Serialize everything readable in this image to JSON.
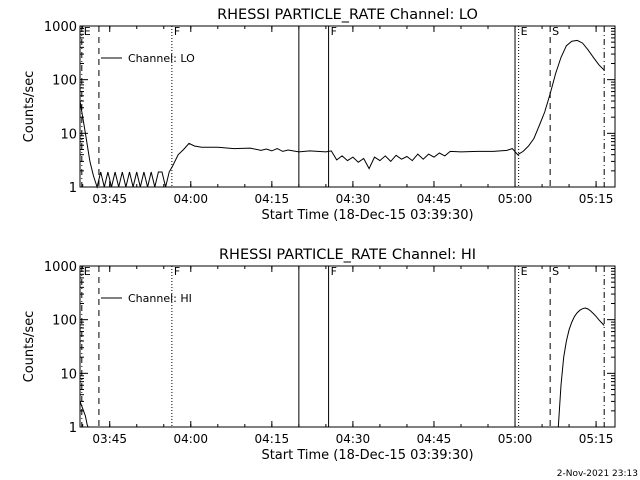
{
  "footer": {
    "timestamp": "2-Nov-2021 23:13"
  },
  "chart_data": [
    {
      "type": "line",
      "title": "RHESSI PARTICLE_RATE Channel: LO",
      "xlabel": "Start Time (18-Dec-15 03:39:30)",
      "ylabel": "Counts/sec",
      "y_scale": "log",
      "xlim": [
        "03:39:30",
        "05:18:30"
      ],
      "ylim": [
        1,
        1000
      ],
      "x_ticks": [
        "03:45",
        "04:00",
        "04:15",
        "04:30",
        "04:45",
        "05:00",
        "05:15"
      ],
      "y_ticks": [
        "1",
        "10",
        "100",
        "1000"
      ],
      "legend": {
        "placement": "top-left",
        "entries": [
          "Channel: LO"
        ]
      },
      "markers": [
        {
          "time": "03:39:50",
          "style": "dash-dot",
          "label": "E"
        },
        {
          "time": "03:43:00",
          "style": "dashed",
          "label": ""
        },
        {
          "time": "03:56:30",
          "style": "dotted",
          "label": "F"
        },
        {
          "time": "04:20:00",
          "style": "solid",
          "label": ""
        },
        {
          "time": "04:25:30",
          "style": "solid",
          "label": "F"
        },
        {
          "time": "05:00:00",
          "style": "solid",
          "label": ""
        },
        {
          "time": "05:00:40",
          "style": "dotted",
          "label": "E"
        },
        {
          "time": "05:06:30",
          "style": "dashed",
          "label": "S"
        },
        {
          "time": "05:16:30",
          "style": "dash-dot",
          "label": ""
        }
      ],
      "series": [
        {
          "name": "Channel: LO",
          "x": [
            "03:39:30",
            "03:40:30",
            "03:41:20",
            "03:42:00",
            "03:42:40",
            "03:43:20",
            "03:44:00",
            "03:44:40",
            "03:45:20",
            "03:46:00",
            "03:46:40",
            "03:47:20",
            "03:48:00",
            "03:48:40",
            "03:49:20",
            "03:50:00",
            "03:50:40",
            "03:51:20",
            "03:52:00",
            "03:52:40",
            "03:53:20",
            "03:54:00",
            "03:54:40",
            "03:55:20",
            "03:56:00",
            "03:56:40",
            "03:57:40",
            "03:58:40",
            "03:59:40",
            "04:00:40",
            "04:02:00",
            "04:05:00",
            "04:08:00",
            "04:11:00",
            "04:13:00",
            "04:14:00",
            "04:15:00",
            "04:16:00",
            "04:17:00",
            "04:18:00",
            "04:20:00",
            "04:22:00",
            "04:25:00",
            "04:26:00",
            "04:27:00",
            "04:28:00",
            "04:29:00",
            "04:30:00",
            "04:31:00",
            "04:32:00",
            "04:33:00",
            "04:34:00",
            "04:35:00",
            "04:36:00",
            "04:37:00",
            "04:38:00",
            "04:39:00",
            "04:40:00",
            "04:41:00",
            "04:42:00",
            "04:43:00",
            "04:44:00",
            "04:45:00",
            "04:46:00",
            "04:47:00",
            "04:48:00",
            "04:50:00",
            "04:53:00",
            "04:56:00",
            "04:58:30",
            "04:59:30",
            "05:00:30",
            "05:01:30",
            "05:02:30",
            "05:03:30",
            "05:04:30",
            "05:05:30",
            "05:06:30",
            "05:07:30",
            "05:08:30",
            "05:09:30",
            "05:10:30",
            "05:11:30",
            "05:12:30",
            "05:13:30",
            "05:14:30",
            "05:15:30",
            "05:16:30"
          ],
          "y": [
            40,
            10,
            3,
            1.6,
            1,
            1.9,
            1,
            1.9,
            1,
            1.9,
            1,
            1.9,
            1,
            1.9,
            1,
            1.9,
            1,
            1.9,
            1,
            1.9,
            1,
            1.9,
            1.9,
            1,
            1.9,
            2.5,
            4,
            5,
            6.5,
            5.8,
            5.5,
            5.5,
            5.2,
            5.3,
            4.8,
            5.1,
            4.7,
            5.2,
            4.6,
            4.9,
            4.5,
            4.7,
            4.5,
            4.7,
            3.2,
            3.8,
            3.1,
            3.6,
            2.9,
            3.4,
            2.2,
            3.6,
            3.1,
            3.8,
            3,
            3.9,
            3.3,
            3.7,
            3.1,
            4.1,
            3.3,
            4.1,
            3.6,
            4.3,
            3.8,
            4.6,
            4.5,
            4.6,
            4.6,
            4.8,
            5.2,
            4,
            4.6,
            5.8,
            8,
            14,
            25,
            55,
            130,
            260,
            430,
            520,
            540,
            480,
            360,
            260,
            190,
            150
          ]
        }
      ]
    },
    {
      "type": "line",
      "title": "RHESSI PARTICLE_RATE Channel: HI",
      "xlabel": "Start Time (18-Dec-15 03:39:30)",
      "ylabel": "Counts/sec",
      "y_scale": "log",
      "xlim": [
        "03:39:30",
        "05:18:30"
      ],
      "ylim": [
        1,
        1000
      ],
      "x_ticks": [
        "03:45",
        "04:00",
        "04:15",
        "04:30",
        "04:45",
        "05:00",
        "05:15"
      ],
      "y_ticks": [
        "1",
        "10",
        "100",
        "1000"
      ],
      "legend": {
        "placement": "top-left",
        "entries": [
          "Channel: HI"
        ]
      },
      "markers": [
        {
          "time": "03:39:50",
          "style": "dash-dot",
          "label": "E"
        },
        {
          "time": "03:43:00",
          "style": "dashed",
          "label": ""
        },
        {
          "time": "03:56:30",
          "style": "dotted",
          "label": "F"
        },
        {
          "time": "04:20:00",
          "style": "solid",
          "label": ""
        },
        {
          "time": "04:25:30",
          "style": "solid",
          "label": "F"
        },
        {
          "time": "05:00:00",
          "style": "solid",
          "label": ""
        },
        {
          "time": "05:00:40",
          "style": "dotted",
          "label": "E"
        },
        {
          "time": "05:06:30",
          "style": "dashed",
          "label": "S"
        },
        {
          "time": "05:16:30",
          "style": "dash-dot",
          "label": ""
        }
      ],
      "series": [
        {
          "name": "Channel: HI",
          "x": [
            "03:39:30",
            "03:40:00",
            "03:40:30",
            "03:40:50",
            "03:41:00"
          ],
          "y": [
            3,
            2.2,
            1.6,
            1.1,
            1
          ],
          "x2": [
            "05:08:00",
            "05:08:30",
            "05:09:00",
            "05:09:30",
            "05:10:00",
            "05:10:30",
            "05:11:00",
            "05:11:30",
            "05:12:00",
            "05:12:30",
            "05:13:00",
            "05:13:30",
            "05:14:00",
            "05:14:30",
            "05:15:00",
            "05:15:30",
            "05:16:00",
            "05:16:30"
          ],
          "y2": [
            1,
            6,
            20,
            40,
            65,
            90,
            115,
            135,
            150,
            160,
            165,
            158,
            145,
            130,
            115,
            100,
            88,
            78
          ]
        }
      ]
    }
  ]
}
